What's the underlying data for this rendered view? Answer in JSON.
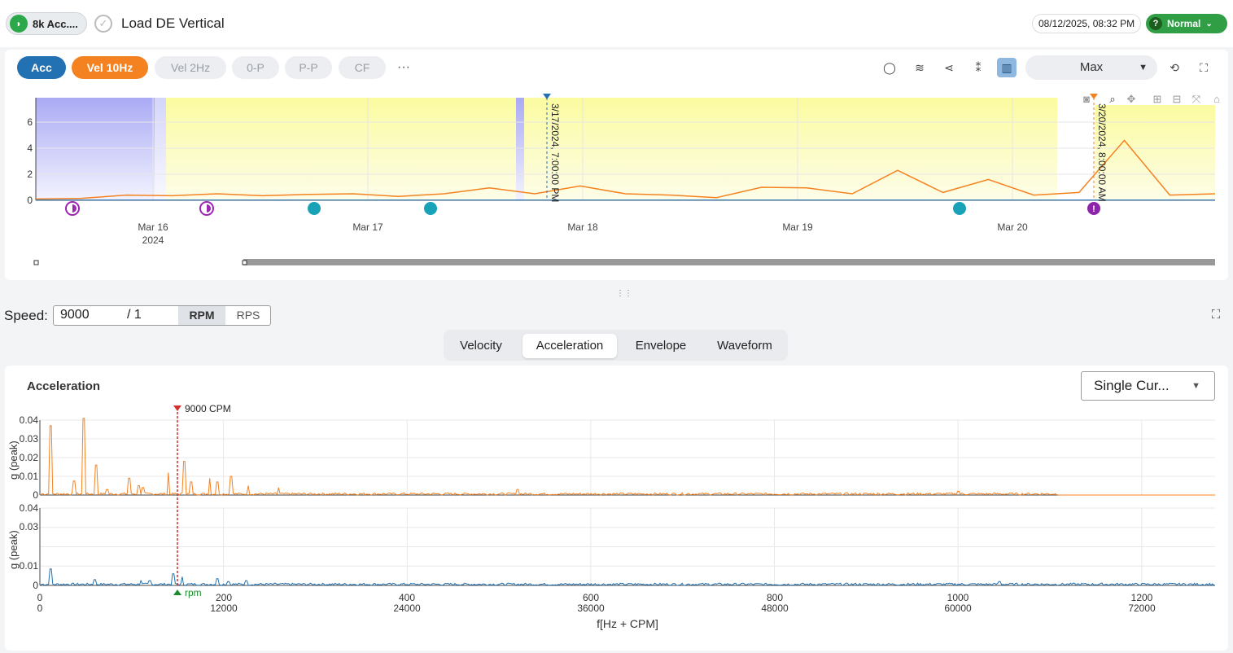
{
  "header": {
    "asset_name": "8k Acc....",
    "asset_icon": "rabbit-icon",
    "check_icon": "check-circle-icon",
    "title": "Load DE Vertical",
    "datetime": "08/12/2025, 08:32 PM",
    "status": "Normal",
    "status_color": "#2f9e44",
    "status_icon": "?"
  },
  "trend": {
    "pills": {
      "acc": "Acc",
      "vel10": "Vel 10Hz",
      "vel2": "Vel 2Hz",
      "op": "0-P",
      "pp": "P-P",
      "cf": "CF",
      "more": "···"
    },
    "range_select": "Max",
    "y_ticks": [
      "0",
      "2",
      "4",
      "6"
    ],
    "x_ticks": [
      "Mar 16",
      "Mar 17",
      "Mar 18",
      "Mar 19",
      "Mar 20"
    ],
    "x_year": "2024",
    "marker_1": "3/17/2024, 7:00:00 PM",
    "marker_2": "3/20/2024, 8:00:00 AM",
    "tools": [
      "comment-icon",
      "waves-icon",
      "filter-icon",
      "scatter-icon",
      "columns-icon",
      "history-icon",
      "fullscreen-icon"
    ],
    "plot_tools": [
      "camera-icon",
      "zoom-icon",
      "pan-icon",
      "zoom-in-icon",
      "zoom-out-icon",
      "autoscale-icon",
      "home-icon"
    ]
  },
  "speed": {
    "label": "Speed:",
    "value": "9000",
    "divider": "/ 1",
    "rpm": "RPM",
    "rps": "RPS"
  },
  "tabs": [
    "Velocity",
    "Acceleration",
    "Envelope",
    "Waveform"
  ],
  "active_tab": "Acceleration",
  "spectrum": {
    "title": "Acceleration",
    "cursor_mode": "Single Cur...",
    "marker_label": "9000 CPM",
    "rpm_label": "rpm",
    "y_label": "g (peak)",
    "y_ticks": [
      "0",
      "0.01",
      "0.02",
      "0.03",
      "0.04"
    ],
    "x_hz": [
      "0",
      "200",
      "400",
      "600",
      "800",
      "1000",
      "1200"
    ],
    "x_cpm": [
      "0",
      "12000",
      "24000",
      "36000",
      "48000",
      "60000",
      "72000"
    ],
    "x_label": "f[Hz + CPM]"
  },
  "chart_data": {
    "type": "line",
    "trend": {
      "series": [
        {
          "color": "#f58220",
          "values": [
            0.1,
            0.15,
            0.4,
            0.35,
            0.5,
            0.35,
            0.45,
            0.5,
            0.3,
            0.5,
            0.95,
            0.5,
            1.1,
            0.5,
            0.4,
            0.2,
            1.0,
            0.95,
            0.5,
            2.3,
            0.6,
            1.6,
            0.4,
            0.6,
            4.6,
            0.4,
            0.5
          ]
        },
        {
          "color": "#2271b3",
          "values": [
            0.02,
            0.02,
            0.02,
            0.02,
            0.02,
            0.02,
            0.02
          ]
        }
      ]
    },
    "spectrum": {
      "x_unit": "Hz",
      "top_peaks": [
        [
          12,
          0.037
        ],
        [
          37,
          0.0075
        ],
        [
          48,
          0.041
        ],
        [
          61,
          0.016
        ],
        [
          73,
          0.003
        ],
        [
          97,
          0.009
        ],
        [
          108,
          0.005
        ],
        [
          112,
          0.004
        ],
        [
          140,
          0.012
        ],
        [
          157,
          0.018
        ],
        [
          165,
          0.007
        ],
        [
          185,
          0.009
        ],
        [
          193,
          0.007
        ],
        [
          208,
          0.01
        ],
        [
          227,
          0.005
        ],
        [
          260,
          0.004
        ],
        [
          520,
          0.003
        ],
        [
          1000,
          0.002
        ]
      ],
      "bottom_peaks": [
        [
          12,
          0.0085
        ],
        [
          60,
          0.003
        ],
        [
          110,
          0.0025
        ],
        [
          120,
          0.0025
        ],
        [
          145,
          0.006
        ],
        [
          155,
          0.0045
        ],
        [
          193,
          0.0035
        ],
        [
          205,
          0.002
        ],
        [
          225,
          0.0025
        ],
        [
          1045,
          0.002
        ]
      ],
      "xlim": [
        0,
        1280
      ],
      "ylim": [
        0,
        0.04
      ]
    }
  }
}
